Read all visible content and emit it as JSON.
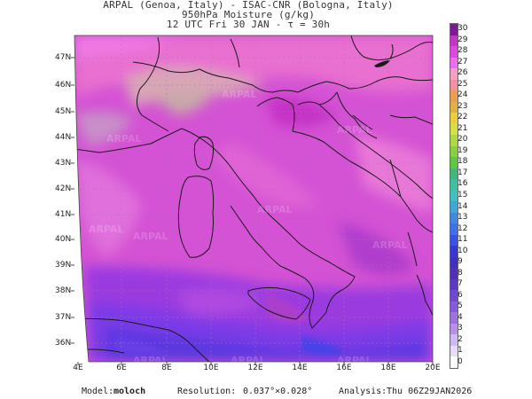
{
  "header": {
    "line1": "ARPAL (Genoa, Italy)  -  ISAC-CNR (Bologna, Italy)",
    "line2": "950hPa Moisture (g/kg)",
    "line3": "12 UTC Fri 30 JAN  -  τ = 30h"
  },
  "axes": {
    "lat_labels": [
      "47N",
      "46N",
      "45N",
      "44N",
      "43N",
      "42N",
      "41N",
      "40N",
      "39N",
      "38N",
      "37N",
      "36N"
    ],
    "lon_labels": [
      "4E",
      "6E",
      "8E",
      "10E",
      "12E",
      "14E",
      "16E",
      "18E",
      "20E"
    ]
  },
  "legend": {
    "values": [
      "30",
      "29",
      "28",
      "27",
      "26",
      "25",
      "24",
      "23",
      "22",
      "21",
      "20",
      "19",
      "18",
      "17",
      "16",
      "15",
      "14",
      "13",
      "12",
      "11",
      "10",
      "9",
      "8",
      "7",
      "6",
      "5",
      "4",
      "3",
      "2",
      "1",
      "0"
    ],
    "colors": [
      "#7a1a9a",
      "#c238c2",
      "#de48de",
      "#ee6cee",
      "#f2a0c4",
      "#f090a0",
      "#e8a050",
      "#e0b040",
      "#e8d040",
      "#d8e040",
      "#b0d840",
      "#88d040",
      "#60c840",
      "#40b878",
      "#40c0a0",
      "#40c0c0",
      "#40a8d8",
      "#4088e0",
      "#4070e8",
      "#3c50e8",
      "#3838d0",
      "#4030c0",
      "#5030b8",
      "#6038c8",
      "#7048d8",
      "#8858e0",
      "#a070e0",
      "#b890e8",
      "#d0b8f0",
      "#e8dcf8",
      "#ffffff"
    ]
  },
  "watermark": "ARPAL",
  "footer": {
    "model_label": "Model:",
    "model_value": "moloch",
    "resolution_label": "Resolution:",
    "resolution_value": "0.037°×0.028°",
    "analysis_label": "Analysis:",
    "analysis_value": "Thu 06Z29JAN2026"
  }
}
